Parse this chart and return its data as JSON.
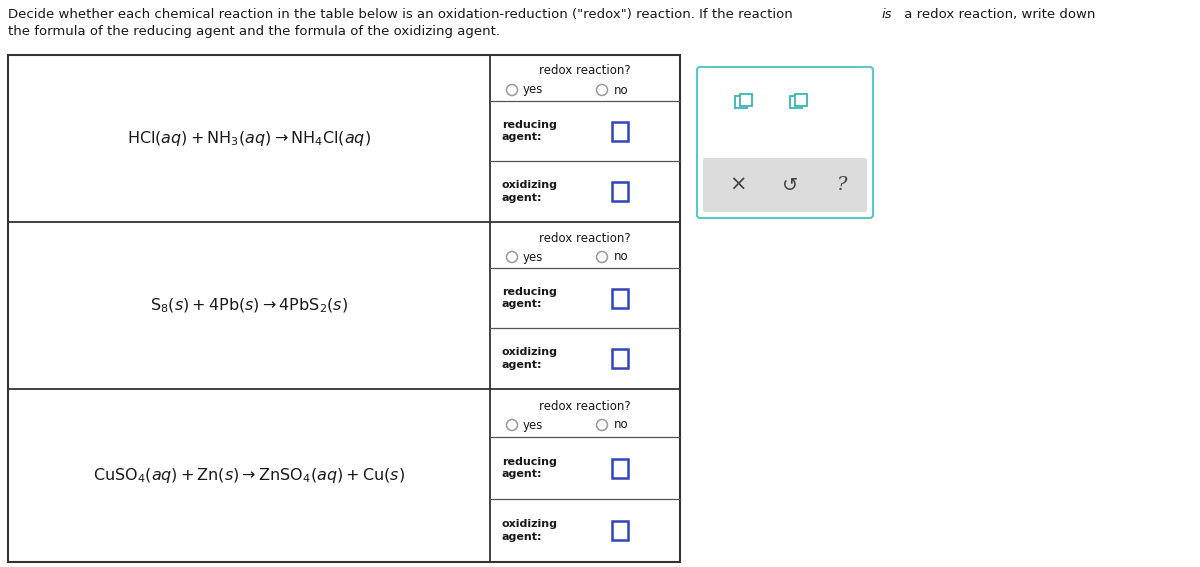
{
  "bg_color": "#ffffff",
  "table_border_color": "#333333",
  "cell_border_color": "#555555",
  "input_box_color": "#3344bb",
  "radio_color": "#aaaaaa",
  "text_color": "#1a1a1a",
  "teal_color": "#3ab5b5",
  "right_panel_border": "#5bc8c8",
  "toolbar_bg": "#dcdcdc",
  "header_line1": "Decide whether each chemical reaction in the table below is an oxidation-reduction (\"redox\") reaction. If the reaction ",
  "header_italic": "is",
  "header_line1b": " a redox reaction, write down",
  "header_line2": "the formula of the reducing agent and the formula of the oxidizing agent.",
  "reactions_math": [
    "$\\mathrm{HCl}(aq) + \\mathrm{NH_3}(aq) \\rightarrow \\mathrm{NH_4Cl}(aq)$",
    "$\\mathrm{S_8}(s) + 4\\mathrm{Pb}(s) \\rightarrow 4\\mathrm{PbS_2}(s)$",
    "$\\mathrm{CuSO_4}(aq) + \\mathrm{Zn}(s) \\rightarrow \\mathrm{ZnSO_4}(aq) + \\mathrm{Cu}(s)$"
  ]
}
